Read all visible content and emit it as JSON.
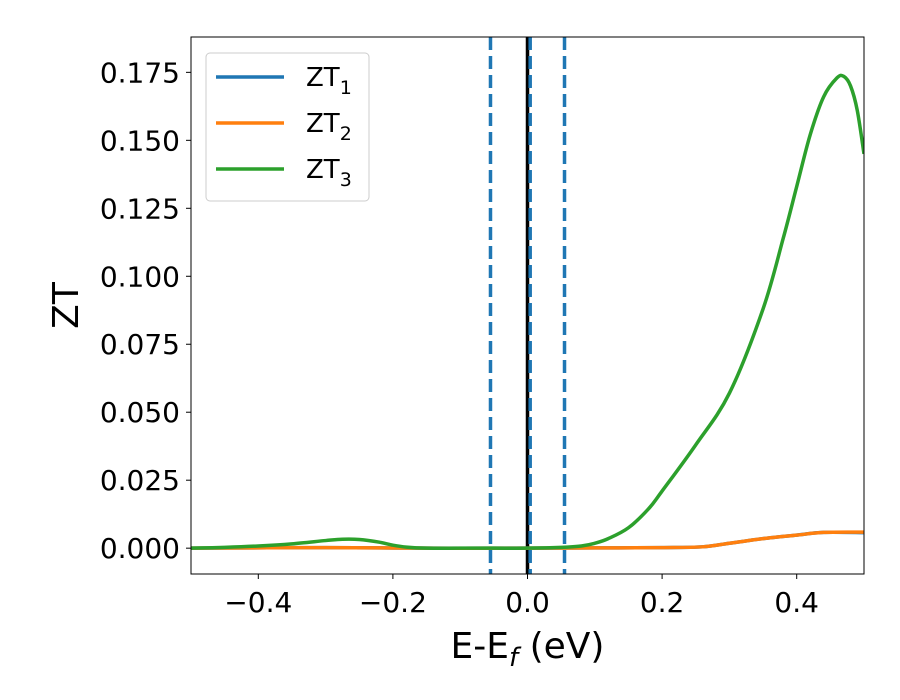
{
  "chart_data": {
    "type": "line",
    "xlabel": "E-E",
    "xlabel_subscript": "f",
    "xlabel_suffix": " (eV)",
    "ylabel": "ZT",
    "xlim": [
      -0.5,
      0.5
    ],
    "ylim": [
      -0.0095,
      0.188
    ],
    "xticks": [
      -0.4,
      -0.2,
      0.0,
      0.2,
      0.4
    ],
    "xtick_labels": [
      "−0.4",
      "−0.2",
      "0.0",
      "0.2",
      "0.4"
    ],
    "yticks": [
      0.0,
      0.025,
      0.05,
      0.075,
      0.1,
      0.125,
      0.15,
      0.175
    ],
    "ytick_labels": [
      "0.000",
      "0.025",
      "0.050",
      "0.075",
      "0.100",
      "0.125",
      "0.150",
      "0.175"
    ],
    "grid": false,
    "legend_position": "top-left",
    "vertical_lines": [
      {
        "x": -0.055,
        "style": "dashed",
        "color": "#1f77b4"
      },
      {
        "x": 0.055,
        "style": "dashed",
        "color": "#1f77b4"
      },
      {
        "x": 0.0,
        "style": "solid",
        "color": "#000000"
      },
      {
        "x": 0.004,
        "style": "dashed",
        "color": "#1f77b4"
      }
    ],
    "series": [
      {
        "name": "ZT",
        "subscript": "1",
        "color": "#1f77b4",
        "x": [
          -0.5,
          -0.3,
          -0.15,
          0.0,
          0.1,
          0.2,
          0.26,
          0.3,
          0.35,
          0.4,
          0.44,
          0.5
        ],
        "y": [
          0.0,
          0.0002,
          0.0,
          0.0,
          0.0001,
          0.0002,
          0.0005,
          0.0018,
          0.0035,
          0.0048,
          0.0058,
          0.0057
        ]
      },
      {
        "name": "ZT",
        "subscript": "2",
        "color": "#ff7f0e",
        "x": [
          -0.5,
          -0.3,
          -0.15,
          0.0,
          0.1,
          0.2,
          0.26,
          0.3,
          0.35,
          0.4,
          0.44,
          0.5
        ],
        "y": [
          0.0,
          0.0002,
          0.0,
          0.0,
          0.0001,
          0.0002,
          0.0005,
          0.0018,
          0.0035,
          0.0048,
          0.0058,
          0.0059
        ]
      },
      {
        "name": "ZT",
        "subscript": "3",
        "color": "#2ca02c",
        "x": [
          -0.5,
          -0.45,
          -0.4,
          -0.35,
          -0.3,
          -0.275,
          -0.25,
          -0.22,
          -0.2,
          -0.18,
          -0.15,
          -0.1,
          -0.05,
          0.0,
          0.05,
          0.08,
          0.1,
          0.12,
          0.15,
          0.18,
          0.2,
          0.25,
          0.3,
          0.35,
          0.38,
          0.4,
          0.42,
          0.44,
          0.46,
          0.47,
          0.48,
          0.49,
          0.5
        ],
        "y": [
          0.0,
          0.0003,
          0.0008,
          0.0016,
          0.0028,
          0.0033,
          0.0032,
          0.0022,
          0.0011,
          0.0004,
          0.0,
          0.0,
          0.0,
          0.0,
          0.0003,
          0.0008,
          0.0018,
          0.0035,
          0.0075,
          0.0145,
          0.021,
          0.038,
          0.057,
          0.088,
          0.114,
          0.133,
          0.152,
          0.166,
          0.173,
          0.1735,
          0.17,
          0.161,
          0.145
        ]
      }
    ]
  }
}
